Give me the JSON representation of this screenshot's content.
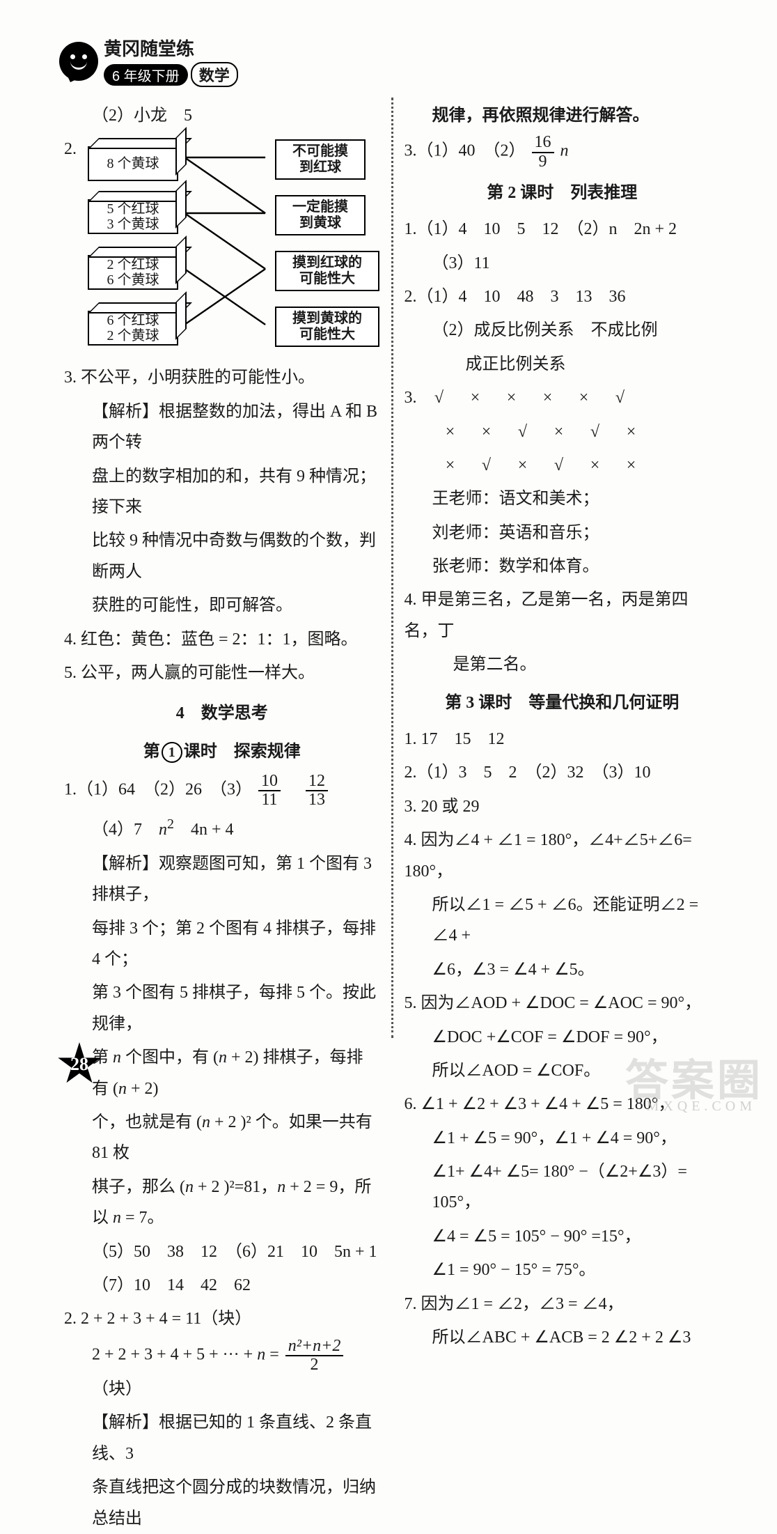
{
  "header": {
    "series": "黄冈随堂练",
    "grade": "6 年级下册",
    "subject": "数学"
  },
  "page_number": "28",
  "watermark": {
    "main": "答案圈",
    "sub": "MXQE.COM"
  },
  "left": {
    "l1": "（2）小龙　5",
    "q2_num": "2.",
    "diagram": {
      "left_boxes": [
        "8 个黄球",
        "5 个红球\n3 个黄球",
        "2 个红球\n6 个黄球",
        "6 个红球\n2 个黄球"
      ],
      "right_boxes": [
        "不可能摸\n到红球",
        "一定能摸\n到黄球",
        "摸到红球的\n可能性大",
        "摸到黄球的\n可能性大"
      ]
    },
    "q3": "3. 不公平，小明获胜的可能性小。",
    "q3_exp1": "【解析】根据整数的加法，得出 A 和 B 两个转",
    "q3_exp2": "盘上的数字相加的和，共有 9 种情况；接下来",
    "q3_exp3": "比较 9 种情况中奇数与偶数的个数，判断两人",
    "q3_exp4": "获胜的可能性，即可解答。",
    "q4": "4. 红色：黄色：蓝色 = 2：1：1，图略。",
    "q5": "5. 公平，两人赢的可能性一样大。",
    "sec4": "4　数学思考",
    "sec4_sub": "课时　探索规律",
    "sec4_sub_pre": "第",
    "sec4_sub_num": "1",
    "q1a": "1.（1）64　（2）26　（3）",
    "frac1": {
      "n": "10",
      "d": "11"
    },
    "frac2": {
      "n": "12",
      "d": "13"
    },
    "q1b": "（4）7　",
    "q1b_n2": "n",
    "q1b_sup": "2",
    "q1b_rest": "　4n + 4",
    "exp1": "【解析】观察题图可知，第 1 个图有 3 排棋子，",
    "exp2": "每排 3 个；第 2 个图有 4 排棋子，每排 4 个；",
    "exp3": "第 3 个图有 5 排棋子，每排 5 个。按此规律，",
    "exp4_a": "第 ",
    "exp4_n": "n",
    "exp4_b": " 个图中，有 (",
    "exp4_c": " + 2) 排棋子，每排有 (",
    "exp4_d": " + 2)",
    "exp5_a": "个，也就是有 (",
    "exp5_b": " + 2 )² 个。如果一共有 81 枚",
    "exp6_a": "棋子，那么 (",
    "exp6_b": " + 2 )²=81，",
    "exp6_c": " + 2 = 9，所以 ",
    "exp6_d": " = 7。",
    "q1_5": "（5）50　38　12　（6）21　10　5n + 1",
    "q1_7": "（7）10　14　42　62",
    "q2_line1": "2. 2 + 2 + 3 + 4 = 11（块）",
    "q2_line2_a": "2 + 2 + 3 + 4 + 5 + ··· + ",
    "q2_line2_eq": " = ",
    "q2_frac": {
      "n": "n²+n+2",
      "d": "2"
    },
    "q2_line2_b": "（块）",
    "q2_exp1": "【解析】根据已知的 1 条直线、2 条直线、3",
    "q2_exp2": "条直线把这个圆分成的块数情况，归纳总结出"
  },
  "right": {
    "top": "规律，再依照规律进行解答。",
    "q3a": "3.（1）40　（2）",
    "q3_frac": {
      "n": "16",
      "d": "9"
    },
    "q3b": " n",
    "sec2": "第 2 课时　列表推理",
    "r1": "1.（1）4　10　5　12　（2）n　2n + 2",
    "r1b": "（3）11",
    "r2a": "2.（1）4　10　48　3　13　36",
    "r2b": "（2）成反比例关系　不成比例",
    "r2c": "　　成正比例关系",
    "r3_num": "3.",
    "r3_rows": [
      [
        "√",
        "×",
        "×",
        "×",
        "×",
        "√"
      ],
      [
        "×",
        "×",
        "√",
        "×",
        "√",
        "×"
      ],
      [
        "×",
        "√",
        "×",
        "√",
        "×",
        "×"
      ]
    ],
    "r3_t1": "王老师：语文和美术；",
    "r3_t2": "刘老师：英语和音乐；",
    "r3_t3": "张老师：数学和体育。",
    "r4a": "4. 甲是第三名，乙是第一名，丙是第四名，丁",
    "r4b": "是第二名。",
    "sec3": "第 3 课时　等量代换和几何证明",
    "s1": "1. 17　15　12",
    "s2": "2.（1）3　5　2　（2）32　（3）10",
    "s3": "3. 20 或 29",
    "s4a": "4. 因为∠4 + ∠1 = 180°，∠4+∠5+∠6= 180°，",
    "s4b": "所以∠1 = ∠5 + ∠6。还能证明∠2 = ∠4 +",
    "s4c": "∠6，∠3 = ∠4 + ∠5。",
    "s5a": "5. 因为∠AOD + ∠DOC = ∠AOC = 90°，",
    "s5b": "∠DOC +∠COF = ∠DOF = 90°，",
    "s5c": "所以∠AOD = ∠COF。",
    "s6a": "6. ∠1 + ∠2 + ∠3 + ∠4 + ∠5 = 180°，",
    "s6b": "∠1 + ∠5 = 90°，∠1 + ∠4 = 90°，",
    "s6c": "∠1+ ∠4+ ∠5= 180° −（∠2+∠3）= 105°，",
    "s6d": "∠4 = ∠5 = 105° − 90° =15°，",
    "s6e": "∠1 = 90° − 15° = 75°。",
    "s7a": "7. 因为∠1 = ∠2，∠3 = ∠4，",
    "s7b": "所以∠ABC + ∠ACB = 2 ∠2 + 2 ∠3"
  }
}
